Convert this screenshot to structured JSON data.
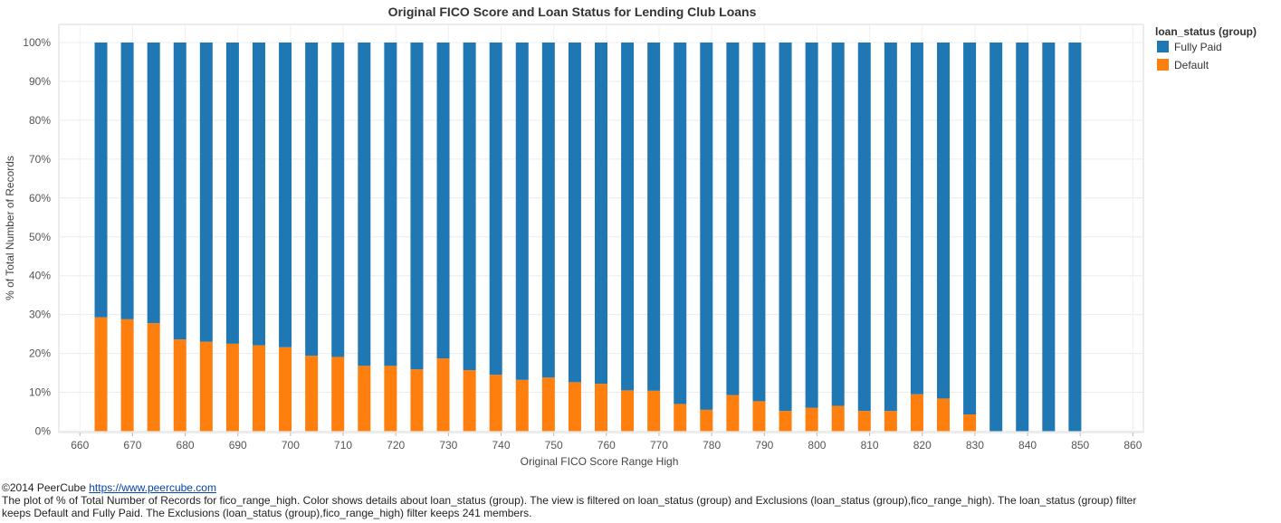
{
  "chart_data": {
    "type": "bar",
    "stacked": true,
    "normalized_percent": true,
    "title": "Original FICO Score and Loan Status for Lending Club Loans",
    "xlabel": "Original FICO Score Range High",
    "ylabel": "% of Total Number of Records",
    "x_ticks": [
      660,
      670,
      680,
      690,
      700,
      710,
      720,
      730,
      740,
      750,
      760,
      770,
      780,
      790,
      800,
      810,
      820,
      830,
      840,
      850,
      860
    ],
    "y_ticks": [
      "0%",
      "10%",
      "20%",
      "30%",
      "40%",
      "50%",
      "60%",
      "70%",
      "80%",
      "90%",
      "100%"
    ],
    "xlim": [
      656,
      862
    ],
    "ylim": [
      0,
      100
    ],
    "grid": true,
    "legend_position": "top-right",
    "legend_title": "loan_status (group)",
    "x": [
      664,
      669,
      674,
      679,
      684,
      689,
      694,
      699,
      704,
      709,
      714,
      719,
      724,
      729,
      734,
      739,
      744,
      749,
      754,
      759,
      764,
      769,
      774,
      779,
      784,
      789,
      794,
      799,
      804,
      809,
      814,
      819,
      824,
      829,
      834,
      839,
      844,
      849
    ],
    "series": [
      {
        "name": "Default",
        "color": "#ff7f0e",
        "values": [
          29.3,
          28.8,
          27.8,
          23.6,
          23.0,
          22.5,
          22.1,
          21.6,
          19.4,
          19.1,
          16.8,
          16.8,
          15.9,
          18.7,
          15.7,
          14.5,
          13.2,
          13.8,
          12.6,
          12.2,
          10.5,
          10.4,
          7.0,
          5.5,
          9.3,
          7.7,
          5.2,
          6.0,
          6.5,
          5.2,
          5.2,
          9.5,
          8.4,
          4.3,
          0,
          0,
          0,
          0
        ]
      },
      {
        "name": "Fully Paid",
        "color": "#1f77b4",
        "values": [
          70.7,
          71.2,
          72.2,
          76.4,
          77.0,
          77.5,
          77.9,
          78.4,
          80.6,
          80.9,
          83.2,
          83.2,
          84.1,
          81.3,
          84.3,
          85.5,
          86.8,
          86.2,
          87.4,
          87.8,
          89.5,
          89.6,
          93.0,
          94.5,
          90.7,
          92.3,
          94.8,
          94.0,
          93.5,
          94.8,
          94.8,
          90.5,
          91.6,
          95.7,
          100,
          100,
          100,
          100
        ]
      }
    ]
  },
  "legend": {
    "title": "loan_status (group)",
    "items": [
      {
        "label": "Fully Paid",
        "color": "#1f77b4"
      },
      {
        "label": "Default",
        "color": "#ff7f0e"
      }
    ]
  },
  "footer": {
    "copyright": "©2014 PeerCube ",
    "link_text": "https://www.peercube.com",
    "description": "The plot of % of Total Number of Records for fico_range_high.  Color shows details about loan_status (group). The view is filtered on loan_status (group) and Exclusions (loan_status (group),fico_range_high). The loan_status (group) filter keeps Default and Fully Paid. The Exclusions (loan_status (group),fico_range_high) filter keeps 241 members."
  }
}
